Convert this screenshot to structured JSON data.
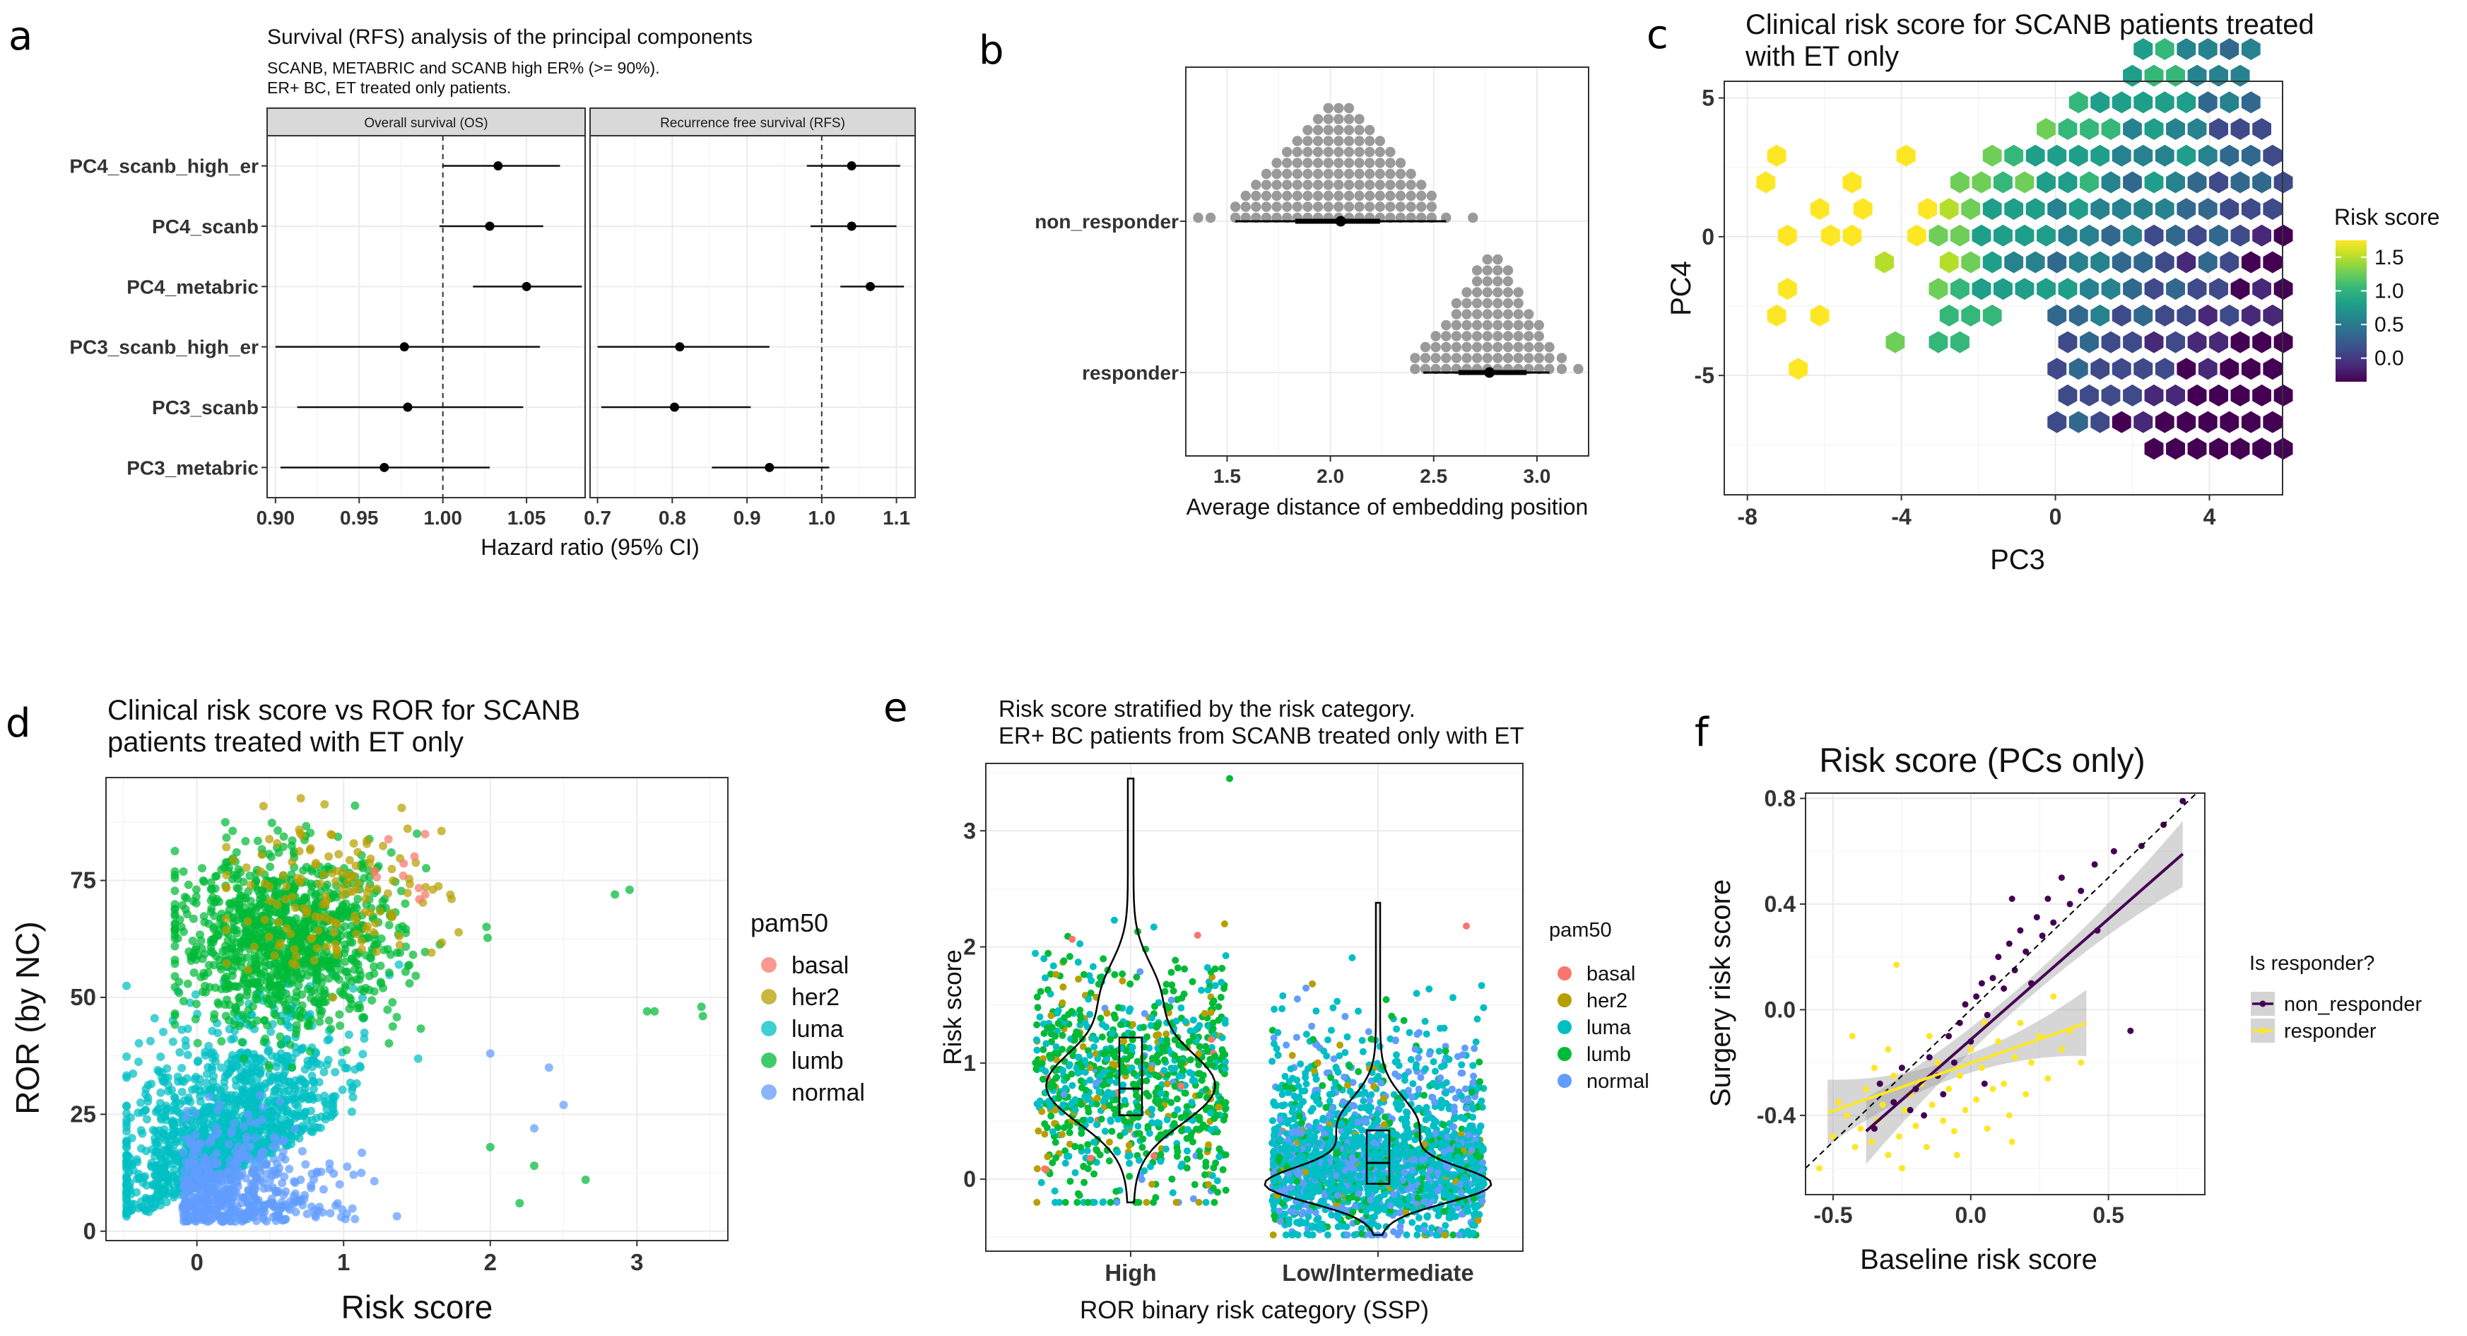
{
  "panel_labels": [
    "a",
    "b",
    "c",
    "d",
    "e",
    "f"
  ],
  "panels": {
    "a": {
      "title": "Survival (RFS) analysis of the principal components",
      "subtitle_1": "SCANB, METABRIC and SCANB high ER% (>= 90%).",
      "subtitle_2": "ER+ BC, ET treated only patients.",
      "facet_os": "Overall survival (OS)",
      "facet_rfs": "Recurrence free survival (RFS)",
      "xlabel": "Hazard ratio (95% CI)"
    },
    "b": {
      "xlabel": "Average distance of embedding position"
    },
    "c": {
      "title_line1": "Clinical risk score for SCANB patients treated",
      "title_line2": "with ET only",
      "xlabel": "PC3",
      "ylabel": "PC4",
      "legend_title": "Risk score"
    },
    "d": {
      "title_line1": "Clinical risk score vs ROR for SCANB",
      "title_line2": "patients treated with ET only",
      "xlabel": "Risk score",
      "ylabel": "ROR (by NC)",
      "legend_title": "pam50"
    },
    "e": {
      "title_line1": "Risk score stratified by the risk category.",
      "title_line2": "ER+ BC patients from SCANB treated only with ET",
      "xlabel": "ROR binary risk category (SSP)",
      "ylabel": "Risk score",
      "legend_title": "pam50"
    },
    "f": {
      "title": "Risk score (PCs only)",
      "xlabel": "Baseline risk score",
      "ylabel": "Surgery risk score",
      "legend_title": "Is responder?"
    }
  },
  "chart_data": [
    {
      "panel": "a",
      "type": "forest",
      "categories": [
        "PC4_scanb_high_er",
        "PC4_scanb",
        "PC4_metabric",
        "PC3_scanb_high_er",
        "PC3_scanb",
        "PC3_metabric"
      ],
      "facets": [
        {
          "name": "Overall survival (OS)",
          "xlim": [
            0.895,
            1.085
          ],
          "ticks": [
            {
              "v": 0.9,
              "label": "0.90"
            },
            {
              "v": 0.95,
              "label": "0.95"
            },
            {
              "v": 1.0,
              "label": "1.00"
            },
            {
              "v": 1.05,
              "label": "1.05"
            }
          ],
          "points": [
            {
              "hr": 1.033,
              "lo": 1.0,
              "hi": 1.07
            },
            {
              "hr": 1.028,
              "lo": 0.998,
              "hi": 1.06
            },
            {
              "hr": 1.05,
              "lo": 1.018,
              "hi": 1.083
            },
            {
              "hr": 0.977,
              "lo": 0.9,
              "hi": 1.058
            },
            {
              "hr": 0.979,
              "lo": 0.913,
              "hi": 1.048
            },
            {
              "hr": 0.965,
              "lo": 0.903,
              "hi": 1.028
            }
          ]
        },
        {
          "name": "Recurrence free survival (RFS)",
          "xlim": [
            0.69,
            1.125
          ],
          "ticks": [
            {
              "v": 0.7,
              "label": "0.7"
            },
            {
              "v": 0.8,
              "label": "0.8"
            },
            {
              "v": 0.9,
              "label": "0.9"
            },
            {
              "v": 1.0,
              "label": "1.0"
            },
            {
              "v": 1.1,
              "label": "1.1"
            }
          ],
          "points": [
            {
              "hr": 1.04,
              "lo": 0.98,
              "hi": 1.105
            },
            {
              "hr": 1.04,
              "lo": 0.985,
              "hi": 1.1
            },
            {
              "hr": 1.065,
              "lo": 1.025,
              "hi": 1.11
            },
            {
              "hr": 0.81,
              "lo": 0.7,
              "hi": 0.93
            },
            {
              "hr": 0.803,
              "lo": 0.705,
              "hi": 0.905
            },
            {
              "hr": 0.93,
              "lo": 0.853,
              "hi": 1.01
            }
          ]
        }
      ],
      "ref_line": 1.0
    },
    {
      "panel": "b",
      "type": "dotplot",
      "categories": [
        "non_responder",
        "responder"
      ],
      "xlim": [
        1.3,
        3.25
      ],
      "ticks": [
        {
          "v": 1.5,
          "label": "1.5"
        },
        {
          "v": 2.0,
          "label": "2.0"
        },
        {
          "v": 2.5,
          "label": "2.5"
        },
        {
          "v": 3.0,
          "label": "3.0"
        }
      ],
      "groups": [
        {
          "name": "non_responder",
          "bins": [
            1.36,
            1.42,
            1.54,
            1.59,
            1.64,
            1.69,
            1.74,
            1.79,
            1.84,
            1.89,
            1.94,
            1.99,
            2.04,
            2.09,
            2.14,
            2.19,
            2.24,
            2.29,
            2.34,
            2.39,
            2.44,
            2.49,
            2.56,
            2.69
          ],
          "counts": [
            1,
            1,
            2,
            3,
            4,
            5,
            6,
            7,
            8,
            9,
            10,
            11,
            11,
            11,
            10,
            9,
            8,
            7,
            6,
            5,
            4,
            3,
            1,
            1
          ],
          "median": 2.05,
          "q1": 1.83,
          "q3": 2.24,
          "lo": 1.54,
          "hi": 2.56
        },
        {
          "name": "responder",
          "bins": [
            2.41,
            2.46,
            2.51,
            2.56,
            2.61,
            2.66,
            2.71,
            2.76,
            2.81,
            2.86,
            2.91,
            2.96,
            3.01,
            3.06,
            3.12,
            3.2
          ],
          "counts": [
            2,
            3,
            4,
            5,
            7,
            8,
            10,
            11,
            11,
            10,
            8,
            6,
            5,
            3,
            2,
            1
          ],
          "median": 2.77,
          "q1": 2.62,
          "q3": 2.95,
          "lo": 2.45,
          "hi": 3.06
        }
      ]
    },
    {
      "panel": "c",
      "type": "hexbin",
      "xlim": [
        -8.6,
        5.9
      ],
      "ylim": [
        -9.3,
        5.6
      ],
      "xticks": [
        {
          "v": -8,
          "label": "-8"
        },
        {
          "v": -4,
          "label": "-4"
        },
        {
          "v": 0,
          "label": "0"
        },
        {
          "v": 4,
          "label": "4"
        }
      ],
      "yticks": [
        {
          "v": 5,
          "label": "5"
        },
        {
          "v": 0,
          "label": "0"
        },
        {
          "v": -5,
          "label": "-5"
        }
      ],
      "color_scale": {
        "min": -0.35,
        "max": 1.75,
        "ticks": [
          {
            "v": 1.5,
            "label": "1.5"
          },
          {
            "v": 1.0,
            "label": "1.0"
          },
          {
            "v": 0.5,
            "label": "0.5"
          },
          {
            "v": 0.0,
            "label": "0.0"
          }
        ]
      },
      "description": "Hexagonal bins of PC3 vs PC4 coloured by mean risk score; dense diagonal cloud from lower-left to upper-right, higher risk (yellow/green) at left/top, lower risk (purple) at lower right."
    },
    {
      "panel": "d",
      "type": "scatter",
      "xlim": [
        -0.62,
        3.62
      ],
      "ylim": [
        -2,
        97
      ],
      "xticks": [
        {
          "v": 0,
          "label": "0"
        },
        {
          "v": 1,
          "label": "1"
        },
        {
          "v": 2,
          "label": "2"
        },
        {
          "v": 3,
          "label": "3"
        }
      ],
      "yticks": [
        {
          "v": 0,
          "label": "0"
        },
        {
          "v": 25,
          "label": "25"
        },
        {
          "v": 50,
          "label": "50"
        },
        {
          "v": 75,
          "label": "75"
        }
      ],
      "series": [
        {
          "name": "basal",
          "color": "#f8766d"
        },
        {
          "name": "her2",
          "color": "#b79f00"
        },
        {
          "name": "luma",
          "color": "#00bfc4"
        },
        {
          "name": "lumb",
          "color": "#00ba38"
        },
        {
          "name": "normal",
          "color": "#619cff"
        }
      ]
    },
    {
      "panel": "e",
      "type": "violin",
      "categories": [
        "High",
        "Low/Intermediate"
      ],
      "ylim": [
        -0.62,
        3.58
      ],
      "yticks": [
        {
          "v": 0,
          "label": "0"
        },
        {
          "v": 1,
          "label": "1"
        },
        {
          "v": 2,
          "label": "2"
        },
        {
          "v": 3,
          "label": "3"
        }
      ],
      "boxes": [
        {
          "category": "High",
          "median": 0.78,
          "q1": 0.55,
          "q3": 1.22,
          "min": -0.18,
          "max": 3.45
        },
        {
          "category": "Low/Intermediate",
          "median": 0.14,
          "q1": -0.04,
          "q3": 0.42,
          "min": -0.48,
          "max": 2.38
        }
      ],
      "series": [
        {
          "name": "basal",
          "color": "#f8766d"
        },
        {
          "name": "her2",
          "color": "#b79f00"
        },
        {
          "name": "luma",
          "color": "#00bfc4"
        },
        {
          "name": "lumb",
          "color": "#00ba38"
        },
        {
          "name": "normal",
          "color": "#619cff"
        }
      ]
    },
    {
      "panel": "f",
      "type": "scatter",
      "xlim": [
        -0.6,
        0.85
      ],
      "ylim": [
        -0.7,
        0.82
      ],
      "xticks": [
        {
          "v": -0.5,
          "label": "-0.5"
        },
        {
          "v": 0.0,
          "label": "0.0"
        },
        {
          "v": 0.5,
          "label": "0.5"
        }
      ],
      "yticks": [
        {
          "v": 0.8,
          "label": "0.8"
        },
        {
          "v": 0.4,
          "label": "0.4"
        },
        {
          "v": 0.0,
          "label": "0.0"
        },
        {
          "v": -0.4,
          "label": "-0.4"
        }
      ],
      "identity_line": true,
      "series": [
        {
          "name": "non_responder",
          "color": "#440154",
          "fit": {
            "x0": -0.38,
            "y0": -0.46,
            "x1": 0.77,
            "y1": 0.59
          },
          "points": [
            [
              -0.33,
              -0.28
            ],
            [
              -0.28,
              -0.35
            ],
            [
              -0.25,
              -0.22
            ],
            [
              -0.22,
              -0.38
            ],
            [
              -0.2,
              -0.3
            ],
            [
              -0.17,
              -0.4
            ],
            [
              -0.15,
              -0.18
            ],
            [
              -0.12,
              -0.25
            ],
            [
              -0.1,
              -0.32
            ],
            [
              -0.08,
              -0.1
            ],
            [
              -0.06,
              -0.2
            ],
            [
              -0.04,
              -0.05
            ],
            [
              -0.02,
              0.02
            ],
            [
              0.0,
              -0.12
            ],
            [
              0.02,
              0.05
            ],
            [
              0.04,
              0.1
            ],
            [
              0.06,
              -0.02
            ],
            [
              0.08,
              0.12
            ],
            [
              0.1,
              0.2
            ],
            [
              0.12,
              0.08
            ],
            [
              0.14,
              0.25
            ],
            [
              0.16,
              0.15
            ],
            [
              0.18,
              0.3
            ],
            [
              0.2,
              0.22
            ],
            [
              0.22,
              0.1
            ],
            [
              0.24,
              0.35
            ],
            [
              0.26,
              0.28
            ],
            [
              0.28,
              0.42
            ],
            [
              0.3,
              0.33
            ],
            [
              0.33,
              0.5
            ],
            [
              0.36,
              0.4
            ],
            [
              0.4,
              0.45
            ],
            [
              0.45,
              0.55
            ],
            [
              0.52,
              0.6
            ],
            [
              0.58,
              -0.08
            ],
            [
              0.62,
              0.62
            ],
            [
              0.7,
              0.7
            ],
            [
              0.77,
              0.79
            ],
            [
              0.46,
              0.3
            ],
            [
              -0.35,
              -0.45
            ],
            [
              0.05,
              -0.28
            ],
            [
              0.15,
              0.42
            ]
          ]
        },
        {
          "name": "responder",
          "color": "#fde725",
          "fit": {
            "x0": -0.52,
            "y0": -0.39,
            "x1": 0.42,
            "y1": -0.05
          },
          "points": [
            [
              -0.55,
              -0.6
            ],
            [
              -0.5,
              -0.48
            ],
            [
              -0.48,
              -0.35
            ],
            [
              -0.45,
              -0.4
            ],
            [
              -0.43,
              -0.1
            ],
            [
              -0.4,
              -0.45
            ],
            [
              -0.38,
              -0.3
            ],
            [
              -0.36,
              -0.5
            ],
            [
              -0.34,
              -0.42
            ],
            [
              -0.32,
              -0.36
            ],
            [
              -0.3,
              -0.55
            ],
            [
              -0.28,
              -0.25
            ],
            [
              -0.27,
              0.17
            ],
            [
              -0.26,
              -0.48
            ],
            [
              -0.24,
              -0.38
            ],
            [
              -0.22,
              -0.32
            ],
            [
              -0.2,
              -0.44
            ],
            [
              -0.18,
              -0.28
            ],
            [
              -0.16,
              -0.52
            ],
            [
              -0.14,
              -0.36
            ],
            [
              -0.12,
              -0.2
            ],
            [
              -0.1,
              -0.42
            ],
            [
              -0.08,
              -0.3
            ],
            [
              -0.06,
              -0.46
            ],
            [
              -0.04,
              -0.25
            ],
            [
              -0.02,
              -0.38
            ],
            [
              0.0,
              -0.15
            ],
            [
              0.02,
              -0.34
            ],
            [
              0.04,
              -0.22
            ],
            [
              0.06,
              -0.45
            ],
            [
              0.08,
              -0.3
            ],
            [
              0.1,
              -0.12
            ],
            [
              0.12,
              -0.28
            ],
            [
              0.14,
              -0.4
            ],
            [
              0.16,
              -0.18
            ],
            [
              0.18,
              -0.05
            ],
            [
              0.2,
              -0.32
            ],
            [
              0.22,
              -0.2
            ],
            [
              0.25,
              -0.1
            ],
            [
              0.28,
              -0.26
            ],
            [
              0.3,
              0.05
            ],
            [
              0.33,
              -0.15
            ],
            [
              0.36,
              -0.08
            ],
            [
              0.4,
              -0.2
            ],
            [
              -0.42,
              -0.52
            ],
            [
              -0.35,
              -0.22
            ],
            [
              -0.25,
              -0.6
            ],
            [
              -0.15,
              -0.1
            ],
            [
              -0.05,
              -0.55
            ],
            [
              0.05,
              -0.05
            ],
            [
              0.15,
              -0.5
            ],
            [
              -0.3,
              -0.15
            ]
          ]
        }
      ]
    }
  ],
  "colors": {
    "viridis": [
      "#440154",
      "#482878",
      "#3e4a89",
      "#31688e",
      "#26828e",
      "#1f9e89",
      "#35b779",
      "#6ece58",
      "#b5de2b",
      "#fde725"
    ]
  }
}
